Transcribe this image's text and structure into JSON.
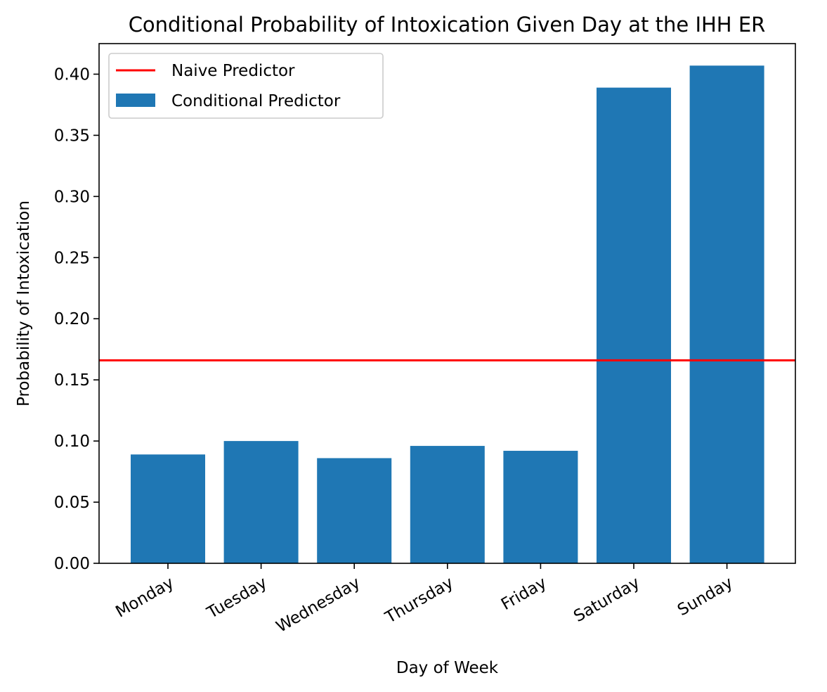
{
  "chart_data": {
    "type": "bar",
    "title": "Conditional Probability of Intoxication Given Day at the IHH ER",
    "xlabel": "Day of Week",
    "ylabel": "Probability of Intoxication",
    "categories": [
      "Monday",
      "Tuesday",
      "Wednesday",
      "Thursday",
      "Friday",
      "Saturday",
      "Sunday"
    ],
    "series": [
      {
        "name": "Conditional Predictor",
        "type": "bar",
        "color": "#1f77b4",
        "values": [
          0.089,
          0.1,
          0.086,
          0.096,
          0.092,
          0.389,
          0.407
        ]
      }
    ],
    "reference_lines": [
      {
        "name": "Naive Predictor",
        "type": "hline",
        "value": 0.166,
        "color": "#ff0000"
      }
    ],
    "ylim": [
      0,
      0.425
    ],
    "yticks": [
      0.0,
      0.05,
      0.1,
      0.15,
      0.2,
      0.25,
      0.3,
      0.35,
      0.4
    ],
    "ytick_labels": [
      "0.00",
      "0.05",
      "0.10",
      "0.15",
      "0.20",
      "0.25",
      "0.30",
      "0.35",
      "0.40"
    ],
    "grid": false,
    "legend": {
      "placement": "top-left",
      "entries": [
        "Naive Predictor",
        "Conditional Predictor"
      ]
    }
  }
}
